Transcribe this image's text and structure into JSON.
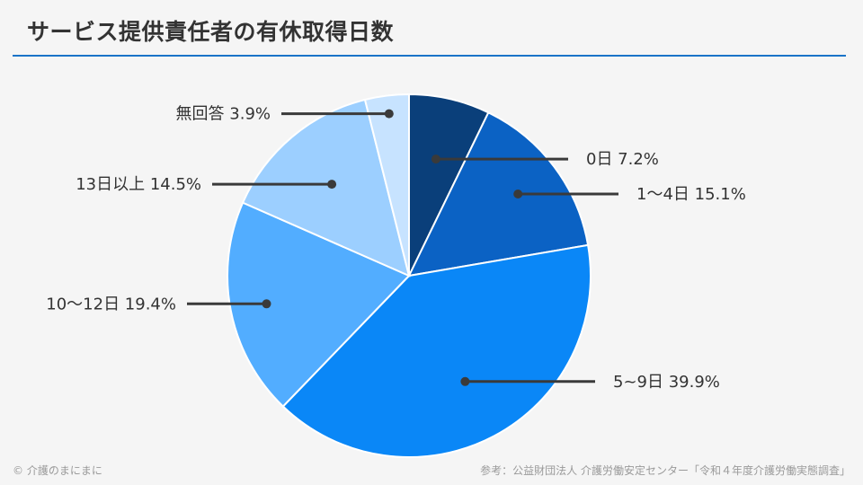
{
  "title": "サービス提供責任者の有休取得日数",
  "colors": {
    "rule": "#1a73c8",
    "leader": "#3a3a3a",
    "slice_border": "#ffffff"
  },
  "chart_data": {
    "type": "pie",
    "start_angle_deg": 0,
    "direction": "clockwise",
    "slices": [
      {
        "label": "0日",
        "value": 7.2,
        "display": "0日 7.2%",
        "color": "#0a3f7a"
      },
      {
        "label": "1〜4日",
        "value": 15.1,
        "display": "1〜4日 15.1%",
        "color": "#0b62c4"
      },
      {
        "label": "5~9日",
        "value": 39.9,
        "display": "5~9日 39.9%",
        "color": "#0a87f7"
      },
      {
        "label": "10〜12日",
        "value": 19.4,
        "display": "10〜12日 19.4%",
        "color": "#52adff"
      },
      {
        "label": "13日以上",
        "value": 14.5,
        "display": "13日以上 14.5%",
        "color": "#9ccfff"
      },
      {
        "label": "無回答",
        "value": 3.9,
        "display": "無回答 3.9%",
        "color": "#c7e3ff"
      }
    ]
  },
  "footer": {
    "copyright": "© 介護のまにまに",
    "source": "参考：公益財団法人 介護労働安定センター「令和４年度介護労働実態調査」"
  }
}
